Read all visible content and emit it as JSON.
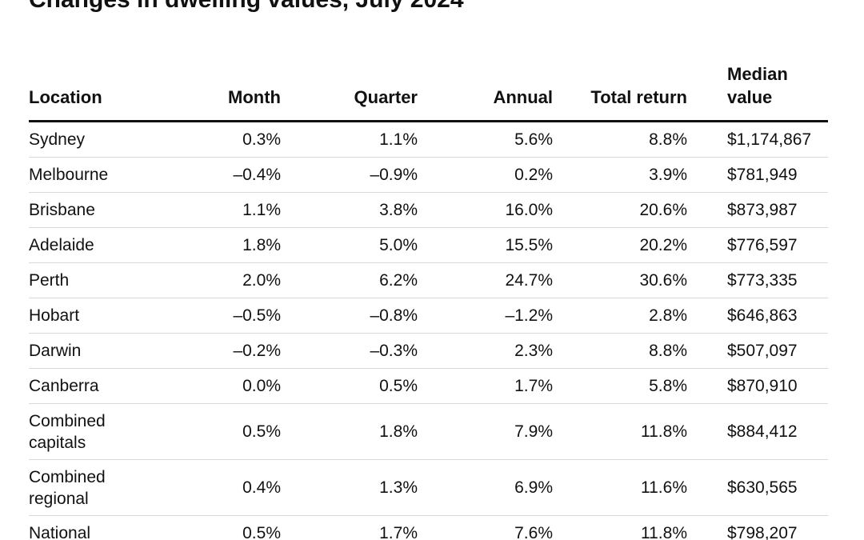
{
  "title": "Changes in dwelling values, July 2024",
  "chart_data": {
    "type": "table",
    "title": "Changes in dwelling values, July 2024",
    "columns": [
      "Location",
      "Month",
      "Quarter",
      "Annual",
      "Total return",
      "Median value"
    ],
    "rows": [
      {
        "location": "Sydney",
        "month": "0.3%",
        "quarter": "1.1%",
        "annual": "5.6%",
        "total_return": "8.8%",
        "median_value": "$1,174,867"
      },
      {
        "location": "Melbourne",
        "month": "–0.4%",
        "quarter": "–0.9%",
        "annual": "0.2%",
        "total_return": "3.9%",
        "median_value": "$781,949"
      },
      {
        "location": "Brisbane",
        "month": "1.1%",
        "quarter": "3.8%",
        "annual": "16.0%",
        "total_return": "20.6%",
        "median_value": "$873,987"
      },
      {
        "location": "Adelaide",
        "month": "1.8%",
        "quarter": "5.0%",
        "annual": "15.5%",
        "total_return": "20.2%",
        "median_value": "$776,597"
      },
      {
        "location": "Perth",
        "month": "2.0%",
        "quarter": "6.2%",
        "annual": "24.7%",
        "total_return": "30.6%",
        "median_value": "$773,335"
      },
      {
        "location": "Hobart",
        "month": "–0.5%",
        "quarter": "–0.8%",
        "annual": "–1.2%",
        "total_return": "2.8%",
        "median_value": "$646,863"
      },
      {
        "location": "Darwin",
        "month": "–0.2%",
        "quarter": "–0.3%",
        "annual": "2.3%",
        "total_return": "8.8%",
        "median_value": "$507,097"
      },
      {
        "location": "Canberra",
        "month": "0.0%",
        "quarter": "0.5%",
        "annual": "1.7%",
        "total_return": "5.8%",
        "median_value": "$870,910"
      },
      {
        "location": "Combined capitals",
        "month": "0.5%",
        "quarter": "1.8%",
        "annual": "7.9%",
        "total_return": "11.8%",
        "median_value": "$884,412"
      },
      {
        "location": "Combined regional",
        "month": "0.4%",
        "quarter": "1.3%",
        "annual": "6.9%",
        "total_return": "11.6%",
        "median_value": "$630,565"
      },
      {
        "location": "National",
        "month": "0.5%",
        "quarter": "1.7%",
        "annual": "7.6%",
        "total_return": "11.8%",
        "median_value": "$798,207"
      }
    ]
  }
}
